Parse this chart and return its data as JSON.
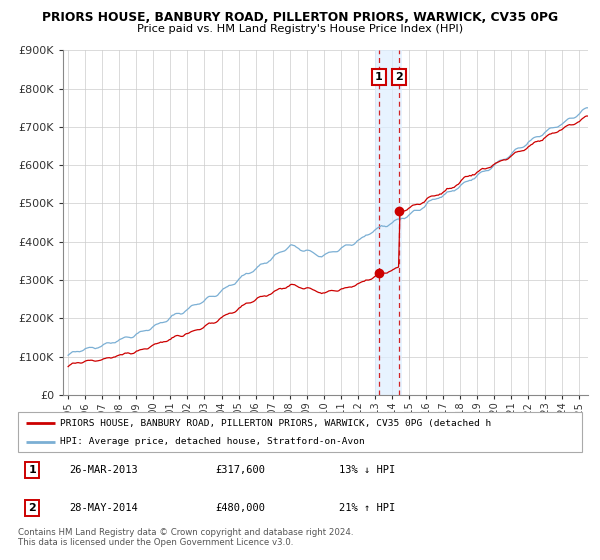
{
  "title_line1": "PRIORS HOUSE, BANBURY ROAD, PILLERTON PRIORS, WARWICK, CV35 0PG",
  "title_line2": "Price paid vs. HM Land Registry's House Price Index (HPI)",
  "ylabel_ticks": [
    "£0",
    "£100K",
    "£200K",
    "£300K",
    "£400K",
    "£500K",
    "£600K",
    "£700K",
    "£800K",
    "£900K"
  ],
  "ylim": [
    0,
    900000
  ],
  "xlim_start": 1994.7,
  "xlim_end": 2025.5,
  "hpi_color": "#7bafd4",
  "price_color": "#cc0000",
  "sale1_x": 2013.23,
  "sale1_y": 317600,
  "sale2_x": 2014.41,
  "sale2_y": 480000,
  "sale1_label": "1",
  "sale2_label": "2",
  "legend_line1": "PRIORS HOUSE, BANBURY ROAD, PILLERTON PRIORS, WARWICK, CV35 0PG (detached h",
  "legend_line2": "HPI: Average price, detached house, Stratford-on-Avon",
  "table_row1_num": "1",
  "table_row1_date": "26-MAR-2013",
  "table_row1_price": "£317,600",
  "table_row1_hpi": "13% ↓ HPI",
  "table_row2_num": "2",
  "table_row2_date": "28-MAY-2014",
  "table_row2_price": "£480,000",
  "table_row2_hpi": "21% ↑ HPI",
  "footnote": "Contains HM Land Registry data © Crown copyright and database right 2024.\nThis data is licensed under the Open Government Licence v3.0.",
  "highlight_x1": 2013.0,
  "highlight_x2": 2014.58,
  "background_color": "#ffffff",
  "grid_color": "#cccccc"
}
